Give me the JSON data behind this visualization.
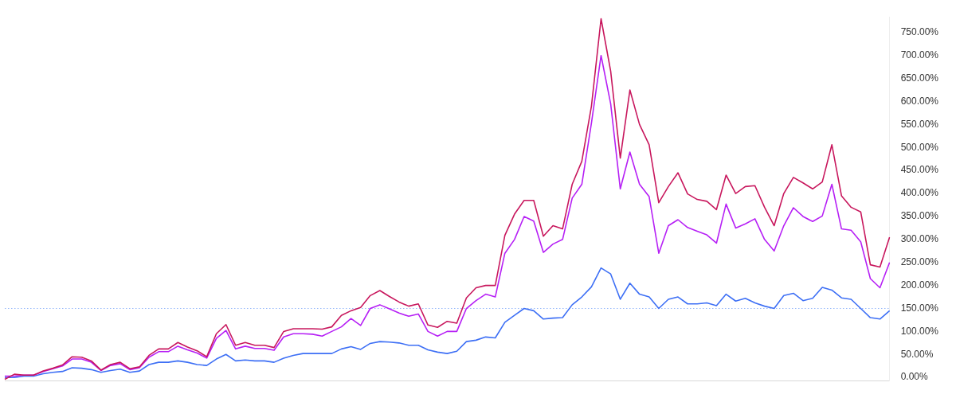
{
  "chart_data": {
    "type": "line",
    "categories": [
      null,
      null,
      null,
      null,
      null,
      null,
      null,
      null,
      null,
      null,
      null,
      null,
      null,
      null,
      null,
      null,
      null,
      null,
      null,
      null,
      null,
      null,
      null,
      null,
      null,
      null,
      null,
      null,
      null,
      null,
      null,
      null,
      null,
      null,
      null,
      null,
      null,
      null,
      null,
      null,
      null,
      null,
      null,
      null,
      null,
      null,
      null,
      null,
      null,
      null,
      null,
      null,
      null,
      null,
      null,
      null,
      null,
      null,
      null,
      null,
      null,
      null,
      null,
      null,
      null,
      null,
      null,
      null,
      null,
      null,
      null,
      null,
      null,
      null,
      null,
      null,
      null,
      null,
      null,
      null,
      null,
      null,
      null,
      null,
      null,
      null,
      null,
      null,
      null,
      null,
      null,
      null,
      null
    ],
    "series": [
      {
        "color": "#c8175d",
        "values": [
          -4,
          7,
          5,
          5,
          14,
          20,
          27,
          45,
          44,
          36,
          16,
          28,
          33,
          19,
          23,
          48,
          62,
          62,
          76,
          66,
          58,
          45,
          95,
          115,
          70,
          76,
          70,
          70,
          65,
          100,
          106,
          106,
          106,
          105,
          110,
          135,
          145,
          152,
          178,
          189,
          176,
          164,
          155,
          160,
          114,
          109,
          122,
          118,
          173,
          195,
          200,
          200,
          309,
          355,
          385,
          385,
          307,
          330,
          323,
          420,
          470,
          590,
          780,
          666,
          477,
          625,
          550,
          506,
          380,
          415,
          445,
          399,
          387,
          383,
          365,
          440,
          400,
          415,
          417,
          370,
          330,
          400,
          435,
          423,
          410,
          425,
          506,
          395,
          370,
          360,
          245,
          240,
          305
        ]
      },
      {
        "color": "#b620f5",
        "values": [
          3,
          3,
          5,
          5,
          13,
          19,
          25,
          40,
          40,
          33,
          15,
          26,
          30,
          17,
          21,
          44,
          56,
          56,
          68,
          60,
          53,
          42,
          85,
          102,
          62,
          68,
          63,
          63,
          59,
          88,
          95,
          95,
          94,
          90,
          100,
          110,
          128,
          113,
          150,
          158,
          149,
          140,
          133,
          138,
          100,
          90,
          100,
          100,
          150,
          167,
          181,
          175,
          270,
          300,
          350,
          340,
          272,
          290,
          300,
          390,
          420,
          553,
          700,
          595,
          410,
          490,
          420,
          393,
          270,
          330,
          343,
          326,
          318,
          310,
          292,
          377,
          325,
          334,
          345,
          300,
          275,
          330,
          369,
          350,
          339,
          351,
          420,
          323,
          320,
          295,
          215,
          195,
          250
        ]
      },
      {
        "color": "#3d6ff5",
        "values": [
          0,
          0,
          3,
          3,
          8,
          11,
          13,
          21,
          20,
          17,
          11,
          15,
          18,
          11,
          14,
          28,
          33,
          33,
          36,
          33,
          28,
          26,
          40,
          50,
          36,
          38,
          36,
          36,
          33,
          42,
          48,
          52,
          52,
          52,
          52,
          62,
          67,
          61,
          74,
          78,
          77,
          75,
          70,
          70,
          60,
          55,
          52,
          57,
          78,
          81,
          88,
          86,
          120,
          135,
          150,
          145,
          127,
          129,
          130,
          158,
          175,
          197,
          238,
          225,
          170,
          205,
          181,
          175,
          150,
          170,
          175,
          160,
          160,
          162,
          156,
          181,
          166,
          172,
          162,
          155,
          150,
          178,
          183,
          167,
          172,
          196,
          190,
          173,
          170,
          150,
          130,
          127,
          145
        ]
      }
    ],
    "ylim": [
      -8,
      784
    ],
    "yticks": [
      {
        "value": 0,
        "label": "0.00%"
      },
      {
        "value": 50,
        "label": "50.00%"
      },
      {
        "value": 100,
        "label": "100.00%"
      },
      {
        "value": 150,
        "label": "150.00%"
      },
      {
        "value": 200,
        "label": "200.00%"
      },
      {
        "value": 250,
        "label": "250.00%"
      },
      {
        "value": 300,
        "label": "300.00%"
      },
      {
        "value": 350,
        "label": "350.00%"
      },
      {
        "value": 400,
        "label": "400.00%"
      },
      {
        "value": 450,
        "label": "450.00%"
      },
      {
        "value": 500,
        "label": "500.00%"
      },
      {
        "value": 550,
        "label": "550.00%"
      },
      {
        "value": 600,
        "label": "600.00%"
      },
      {
        "value": 650,
        "label": "650.00%"
      },
      {
        "value": 700,
        "label": "700.00%"
      },
      {
        "value": 750,
        "label": "750.00%"
      }
    ],
    "ref_lines": [
      {
        "axis": "y",
        "value": 150,
        "color": "#93b6fb",
        "line_style": "dotted"
      }
    ],
    "grid": false,
    "legend": false,
    "marker": "none",
    "tick_labels": "y"
  }
}
